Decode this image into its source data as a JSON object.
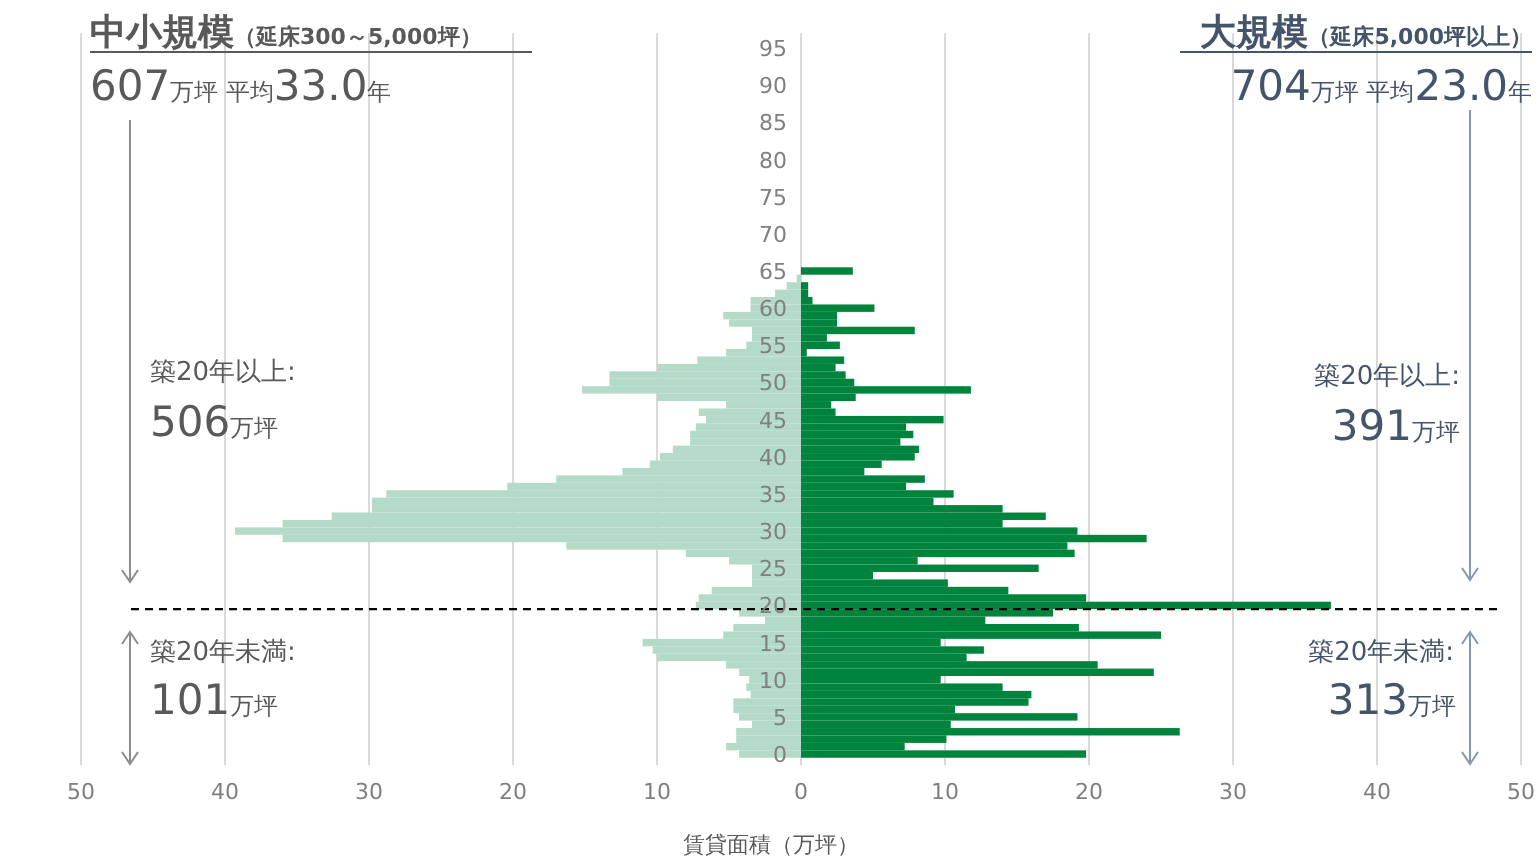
{
  "chart_data": {
    "type": "bar",
    "orientation": "horizontal",
    "stacked": true,
    "grid": "x",
    "xlabel": "賃貸面積（万坪）",
    "x": [
      0,
      1,
      2,
      3,
      4,
      5,
      6,
      7,
      8,
      9,
      10,
      11,
      12,
      13,
      14,
      15,
      16,
      17,
      18,
      19,
      20,
      21,
      22,
      23,
      24,
      25,
      26,
      27,
      28,
      29,
      30,
      31,
      32,
      33,
      34,
      35,
      36,
      37,
      38,
      39,
      40,
      41,
      42,
      43,
      44,
      45,
      46,
      47,
      48,
      49,
      50,
      51,
      52,
      53,
      54,
      55,
      56,
      57,
      58,
      59,
      60,
      61,
      62,
      63,
      64,
      65
    ],
    "xlim": [
      -50,
      50
    ],
    "xticks": [
      {
        "value": -50,
        "label": "50"
      },
      {
        "value": -40,
        "label": "40"
      },
      {
        "value": -30,
        "label": "30"
      },
      {
        "value": -20,
        "label": "20"
      },
      {
        "value": -10,
        "label": "10"
      },
      0,
      10,
      20,
      30,
      40,
      50
    ],
    "ylim": [
      -1.5,
      97
    ],
    "yticks": [
      0,
      5,
      10,
      15,
      20,
      25,
      30,
      35,
      40,
      45,
      50,
      55,
      60,
      65,
      70,
      75,
      80,
      85,
      90,
      95
    ],
    "series": [
      {
        "color": "#b3dbc8",
        "values": [
          -4.3,
          -5.2,
          -4.5,
          -4.5,
          -3.4,
          -4.3,
          -4.7,
          -4.7,
          -3.5,
          -3.8,
          -3.6,
          -4.3,
          -5.2,
          -10,
          -10.3,
          -11,
          -5.4,
          -4.7,
          -2.5,
          -4.3,
          -7.3,
          -7.1,
          -6.2,
          -3.4,
          -3.4,
          -3.4,
          -5,
          -8,
          -16.3,
          -36,
          -39.3,
          -36,
          -32.6,
          -29.8,
          -29.8,
          -28.8,
          -20.4,
          -17,
          -12.4,
          -10.5,
          -9.8,
          -8.9,
          -7.7,
          -7.7,
          -7.3,
          -6.6,
          -7.1,
          -5.2,
          -10,
          -15.2,
          -13.3,
          -13.3,
          -10,
          -7.2,
          -5.2,
          -3.8,
          -3.4,
          -3.4,
          -5,
          -5.4,
          -3.5,
          -3.5,
          -1.8,
          -1,
          -0.3,
          0
        ]
      },
      {
        "color": "#00843d",
        "values": [
          19.8,
          7.2,
          10.1,
          26.3,
          10.4,
          19.2,
          10.7,
          15.8,
          16,
          14,
          9.7,
          24.5,
          20.6,
          11.5,
          12.7,
          9.7,
          25,
          19.3,
          12.8,
          17.5,
          36.8,
          19.8,
          14.4,
          10.2,
          5,
          16.5,
          8.1,
          19,
          18.5,
          24,
          19.2,
          14,
          17,
          14,
          9.2,
          10.6,
          7.3,
          8.6,
          4.4,
          5.6,
          7.9,
          8.2,
          6.9,
          7.8,
          7.3,
          9.9,
          2.4,
          2.1,
          3.8,
          11.8,
          3.7,
          3.1,
          2.4,
          3,
          0.4,
          2.7,
          1.8,
          7.9,
          2.5,
          2.5,
          5.1,
          0.8,
          0.5,
          0.5,
          0,
          3.6
        ]
      }
    ],
    "ref_lines": [
      {
        "axis": "y",
        "value": 19.5,
        "line_style": "dashed",
        "color": "#000000"
      }
    ],
    "annotations": [
      "中小規模（延床300～5,000坪）",
      "607万坪 平均33.0年",
      "大規模（延床5,000坪以上）",
      "704万坪 平均23.0年",
      "築20年以上:",
      "506万坪",
      "築20年未満:",
      "101万坪",
      "築20年以上:",
      "391万坪",
      "築20年未満:",
      "313万坪"
    ]
  }
}
